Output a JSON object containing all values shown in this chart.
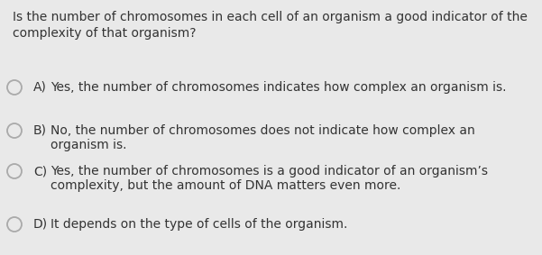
{
  "background_color": "#e9e9e9",
  "question_line1": "Is the number of chromosomes in each cell of an organism a good indicator of the",
  "question_line2": "complexity of that organism?",
  "options": [
    {
      "label": "A)",
      "text_line1": "Yes, the number of chromosomes indicates how complex an organism is.",
      "text_line2": null
    },
    {
      "label": "B)",
      "text_line1": "No, the number of chromosomes does not indicate how complex an",
      "text_line2": "organism is."
    },
    {
      "label": "C)",
      "text_line1": "Yes, the number of chromosomes is a good indicator of an organism’s",
      "text_line2": "complexity, but the amount of DNA matters even more."
    },
    {
      "label": "D)",
      "text_line1": "It depends on the type of cells of the organism.",
      "text_line2": null
    }
  ],
  "question_fontsize": 10.0,
  "option_fontsize": 10.0,
  "text_color": "#333333",
  "circle_color": "#aaaaaa",
  "font_family": "DejaVu Sans"
}
